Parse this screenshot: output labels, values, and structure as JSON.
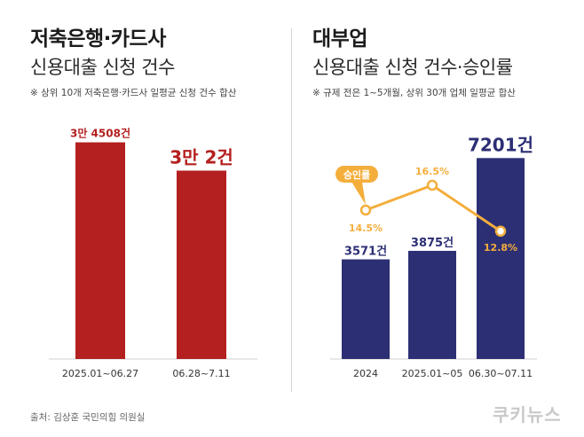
{
  "left": {
    "title": "저축은행·카드사",
    "subtitle": "신용대출 신청 건수",
    "note": "※ 상위 10개 저축은행·카드사 일평균 신청 건수 합산"
  },
  "right": {
    "title": "대부업",
    "subtitle": "신용대출 신청 건수·승인률",
    "note": "※ 규제 전은 1~5개월, 상위 30개 업체 일평균 합산"
  },
  "source": "출처: 김상훈 국민의힘 의원실",
  "logo": "쿠키뉴스",
  "colors": {
    "red": "#b3201f",
    "navy": "#2c2f74",
    "orange": "#f4ae3c"
  },
  "chart_data": [
    {
      "type": "bar",
      "categories": [
        "2025.01~06.27",
        "06.28~7.11"
      ],
      "values": [
        34508,
        30002
      ],
      "value_labels": [
        "3만 4508건",
        "3만 2건"
      ],
      "ylim": [
        0,
        36000
      ]
    },
    {
      "type": "bar",
      "categories": [
        "2024",
        "2025.01~05",
        "06.30~07.11"
      ],
      "series": [
        {
          "values": [
            3571,
            3875,
            7201
          ],
          "value_labels": [
            "3571건",
            "3875건",
            "7201건"
          ]
        },
        {
          "name": "승인률",
          "type": "line",
          "values": [
            14.5,
            16.5,
            12.8
          ],
          "value_labels": [
            "14.5%",
            "16.5%",
            "12.8%"
          ]
        }
      ],
      "ylim": [
        0,
        8100
      ]
    }
  ]
}
